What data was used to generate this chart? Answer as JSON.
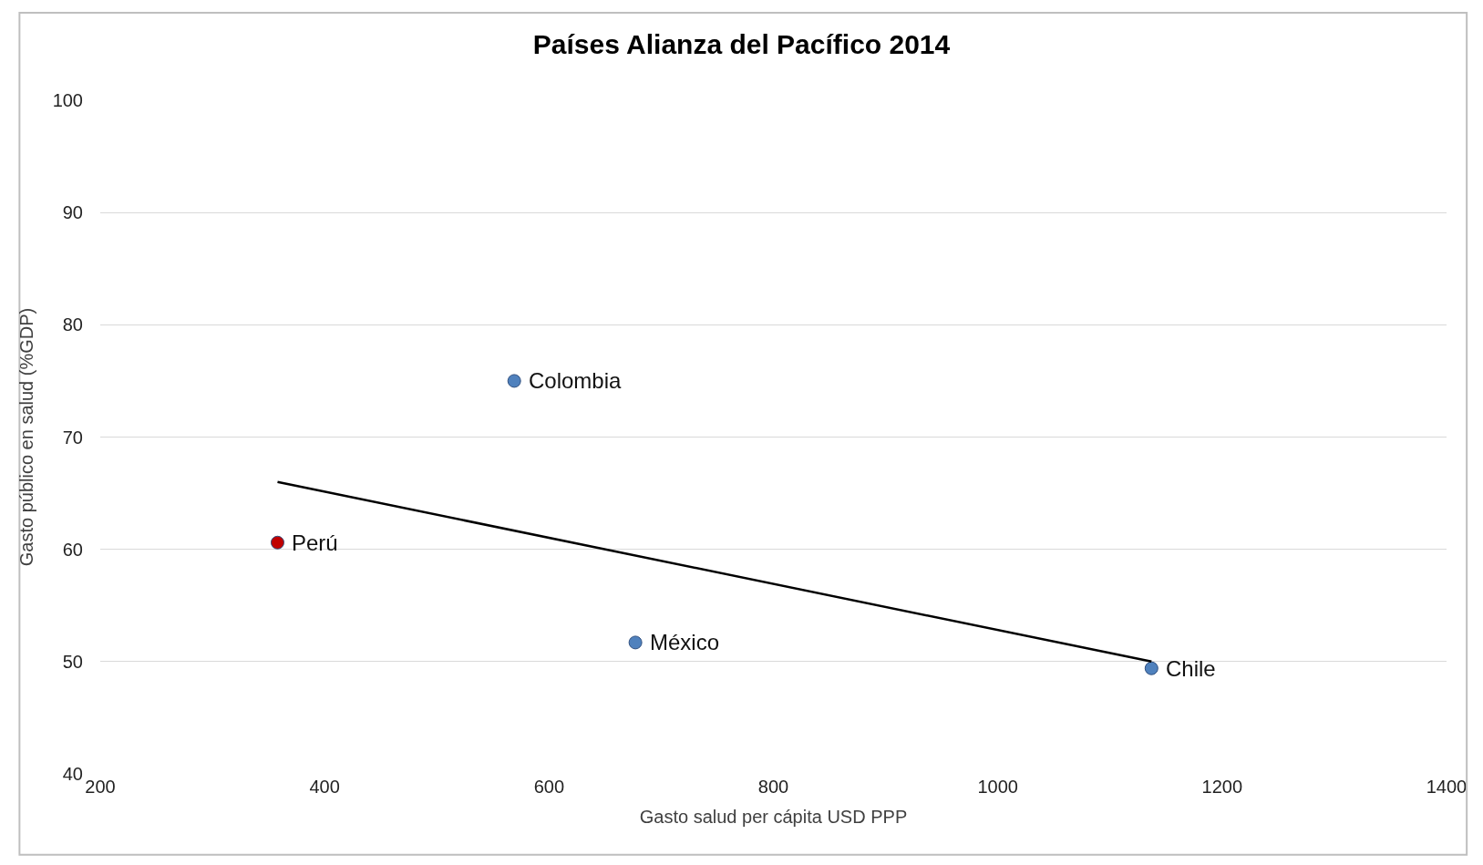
{
  "chart_data": {
    "type": "scatter",
    "title": "Países Alianza del Pacífico 2014",
    "xlabel": "Gasto salud per cápita USD PPP",
    "ylabel": "Gasto público en salud (%GDP)",
    "x": [
      358,
      569,
      677,
      1137
    ],
    "series": [
      {
        "marker": "circle",
        "values": [
          60.6,
          75.0,
          51.7,
          49.4
        ],
        "colors": [
          "#c00000",
          "#4f81bd",
          "#4f81bd",
          "#4f81bd"
        ]
      },
      {
        "type": "line",
        "marker": "none",
        "x": [
          358,
          1137
        ],
        "values": [
          66,
          50
        ],
        "color": "#000000"
      }
    ],
    "annotations": [
      {
        "text": "Perú",
        "x": 358,
        "y": 60.6
      },
      {
        "text": "Colombia",
        "x": 569,
        "y": 75.0
      },
      {
        "text": "México",
        "x": 677,
        "y": 51.7
      },
      {
        "text": "Chile",
        "x": 1137,
        "y": 49.4
      }
    ],
    "xlim": [
      200,
      1400
    ],
    "xticks": [
      200,
      400,
      600,
      800,
      1000,
      1200,
      1400
    ],
    "ylim": [
      40,
      100
    ],
    "yticks": [
      40,
      50,
      60,
      70,
      80,
      90,
      100
    ],
    "grid": "y"
  }
}
